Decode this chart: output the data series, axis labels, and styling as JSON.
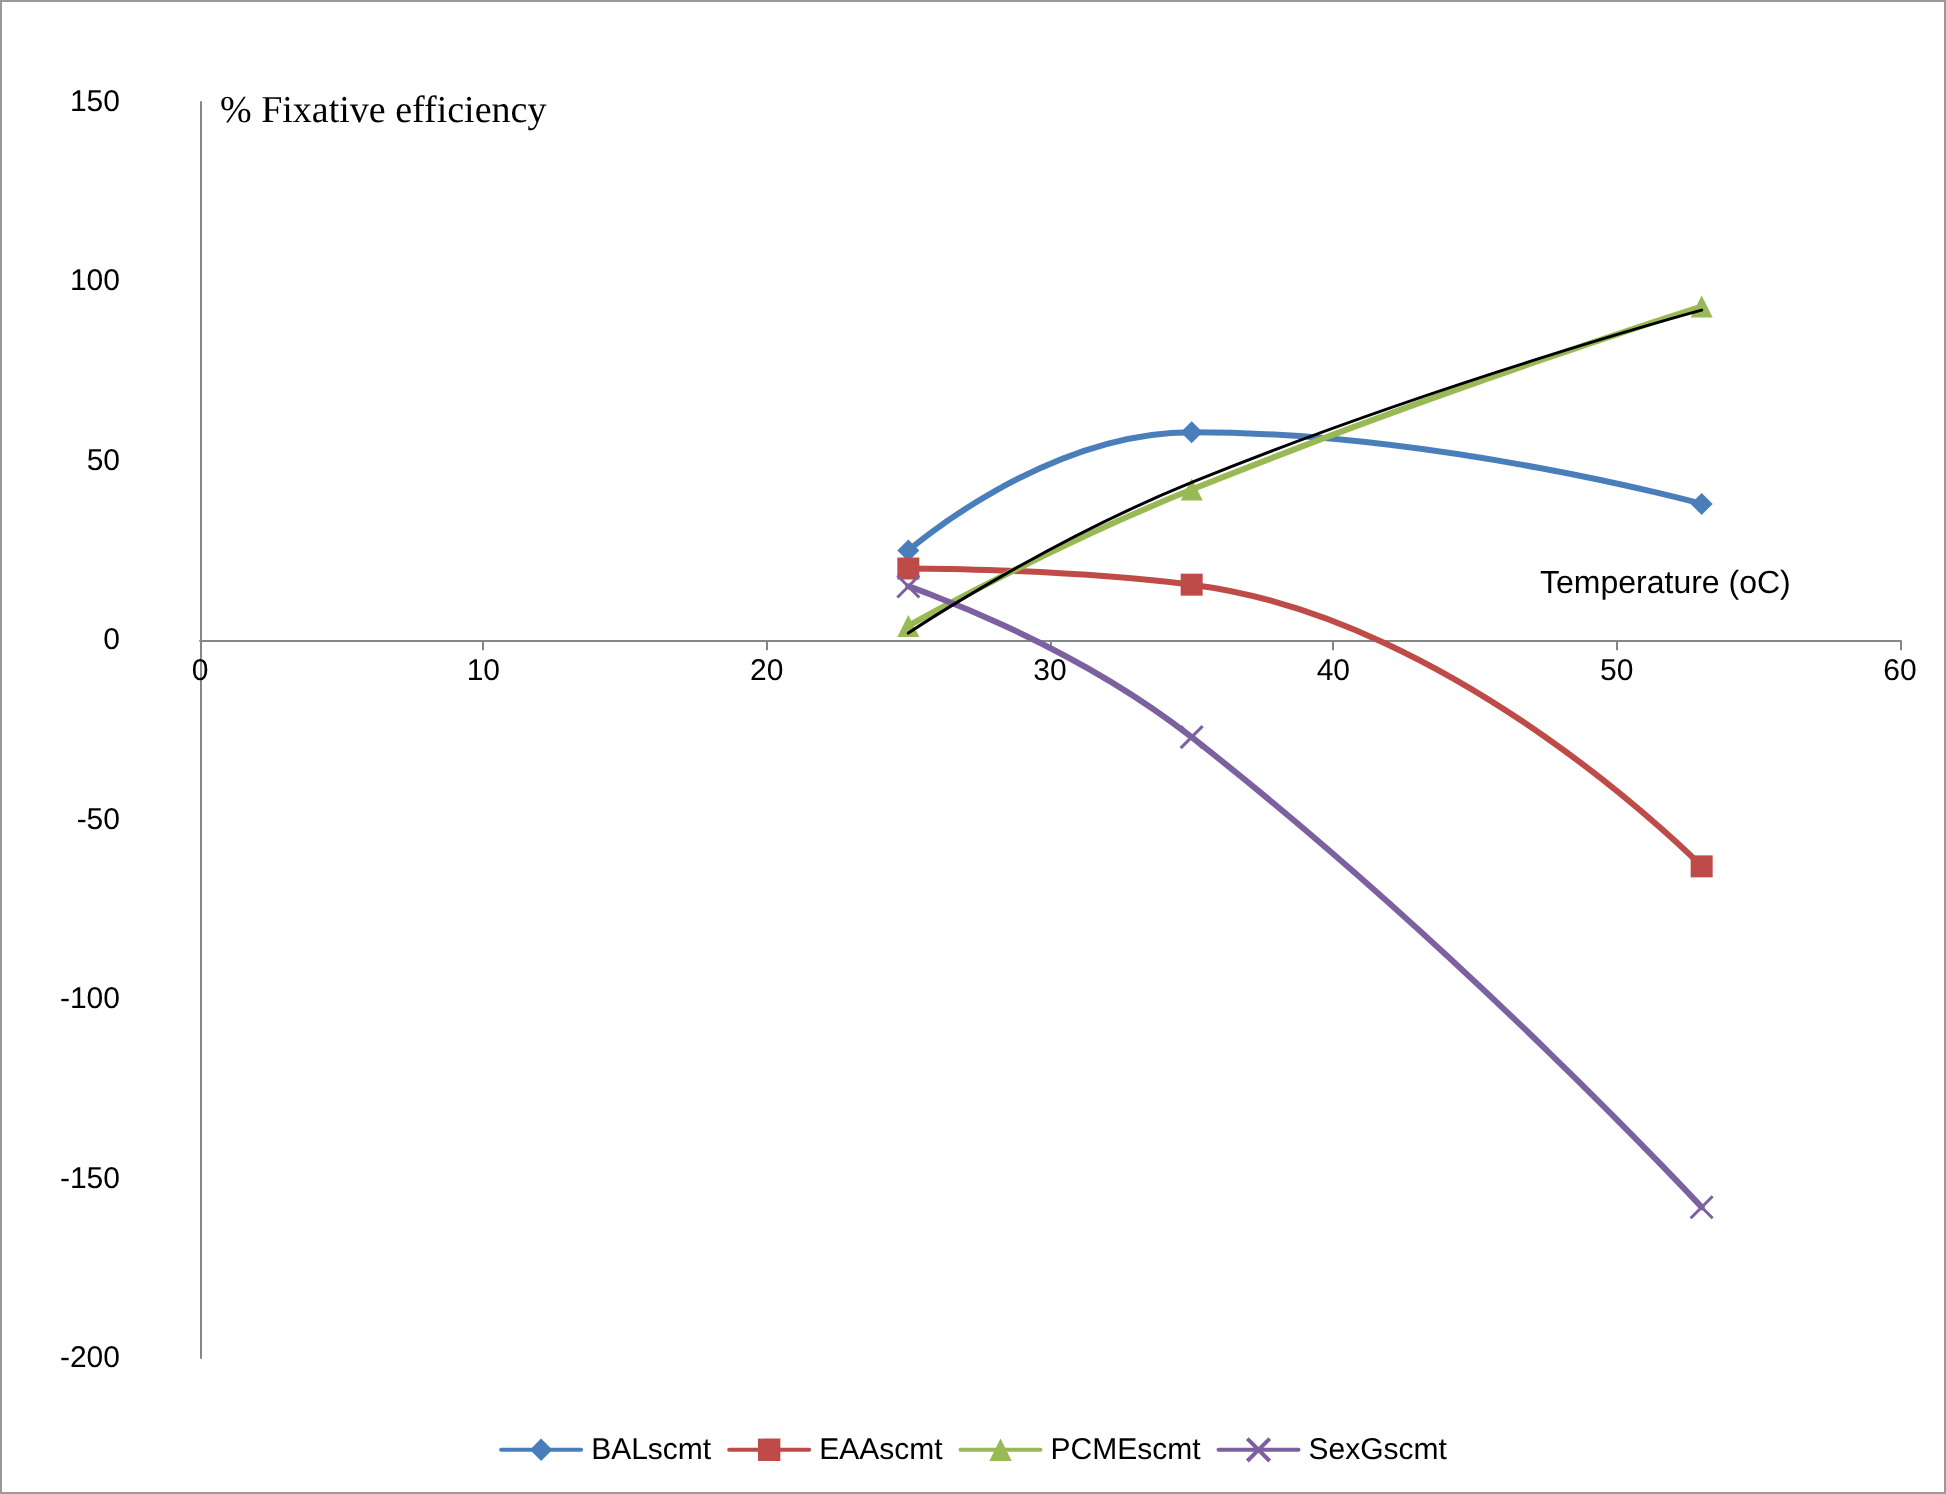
{
  "chart_data": {
    "type": "line",
    "xlabel": "Temperature (oC)",
    "ylabel": "% Fixative efficiency",
    "x": [
      25,
      35,
      53
    ],
    "series": [
      {
        "name": "BALscmt",
        "color": "#4a7ebb",
        "values": [
          25,
          58,
          38
        ],
        "marker": "diamond"
      },
      {
        "name": "EAAscmt",
        "color": "#be4b48",
        "values": [
          20,
          15.5,
          -63
        ],
        "marker": "square"
      },
      {
        "name": "PCMEscmt",
        "color": "#98b954",
        "values": [
          4,
          42,
          93
        ],
        "marker": "triangle"
      },
      {
        "name": "SexGscmt",
        "color": "#7d60a0",
        "values": [
          15,
          -27,
          -158
        ],
        "marker": "cross"
      },
      {
        "color": "#000000",
        "values": [
          2,
          44,
          92
        ],
        "marker": "none",
        "x": [
          25,
          35,
          53
        ]
      }
    ],
    "xlim": [
      0,
      60
    ],
    "xticks": [
      0,
      10,
      20,
      30,
      40,
      50,
      60
    ],
    "ylim": [
      -200,
      150
    ],
    "yticks": [
      -200,
      -150,
      -100,
      -50,
      0,
      50,
      100,
      150
    ],
    "grid": false,
    "legend": "bottom",
    "line_style": "solid"
  }
}
